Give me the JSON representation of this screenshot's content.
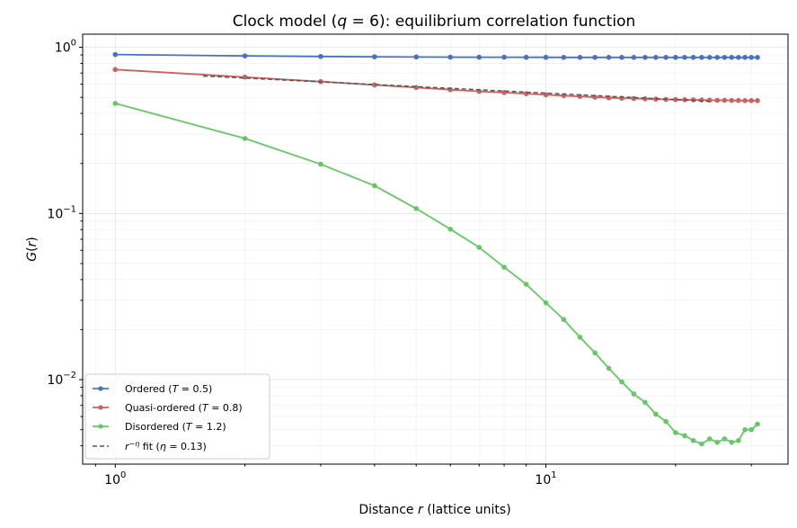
{
  "chart_data": {
    "type": "line",
    "title": "Clock model (q = 6): equilibrium correlation function",
    "xlabel": "Distance r (lattice units)",
    "ylabel": "G(r)",
    "xscale": "log",
    "yscale": "log",
    "xlim": [
      0.84,
      36.5
    ],
    "ylim": [
      0.0031,
      1.2
    ],
    "x_ticks": [
      {
        "value": 1,
        "label": "10^0"
      },
      {
        "value": 10,
        "label": "10^1"
      }
    ],
    "y_ticks": [
      {
        "value": 0.01,
        "label": "10^-2"
      },
      {
        "value": 0.1,
        "label": "10^-1"
      },
      {
        "value": 1,
        "label": "10^0"
      }
    ],
    "grid": true,
    "legend_position": "lower-left",
    "x": [
      1,
      2,
      3,
      4,
      5,
      6,
      7,
      8,
      9,
      10,
      11,
      12,
      13,
      14,
      15,
      16,
      17,
      18,
      19,
      20,
      21,
      22,
      23,
      24,
      25,
      26,
      27,
      28,
      29,
      30,
      31
    ],
    "series": [
      {
        "name": "Ordered (T = 0.5)",
        "color": "#4472c4",
        "style": "line-marker",
        "values": [
          0.905,
          0.888,
          0.881,
          0.877,
          0.875,
          0.873,
          0.872,
          0.872,
          0.871,
          0.871,
          0.87,
          0.87,
          0.87,
          0.87,
          0.87,
          0.87,
          0.87,
          0.87,
          0.87,
          0.87,
          0.87,
          0.87,
          0.87,
          0.87,
          0.87,
          0.87,
          0.87,
          0.87,
          0.87,
          0.87,
          0.87
        ]
      },
      {
        "name": "Quasi-ordered (T = 0.8)",
        "color": "#d05f5f",
        "style": "line-marker",
        "values": [
          0.735,
          0.662,
          0.622,
          0.594,
          0.573,
          0.556,
          0.543,
          0.534,
          0.526,
          0.518,
          0.512,
          0.506,
          0.501,
          0.497,
          0.494,
          0.492,
          0.49,
          0.488,
          0.486,
          0.485,
          0.484,
          0.483,
          0.482,
          0.481,
          0.48,
          0.48,
          0.479,
          0.479,
          0.478,
          0.478,
          0.478
        ]
      },
      {
        "name": "Disordered (T = 1.2)",
        "color": "#63c963",
        "style": "line-marker",
        "values": [
          0.46,
          0.283,
          0.198,
          0.147,
          0.107,
          0.0805,
          0.0625,
          0.0475,
          0.0375,
          0.029,
          0.023,
          0.018,
          0.0145,
          0.0117,
          0.0097,
          0.0082,
          0.0073,
          0.0062,
          0.0056,
          0.0048,
          0.0046,
          0.0043,
          0.0041,
          0.0044,
          0.0042,
          0.0044,
          0.0042,
          0.0043,
          0.005,
          0.005,
          0.0054
        ]
      },
      {
        "name": "r^(-η) fit (η = 0.13)",
        "color": "#555555",
        "style": "dashed",
        "fit": {
          "amplitude": 0.715,
          "eta": 0.13,
          "x_range": [
            1.6,
            24.0
          ]
        }
      }
    ]
  }
}
